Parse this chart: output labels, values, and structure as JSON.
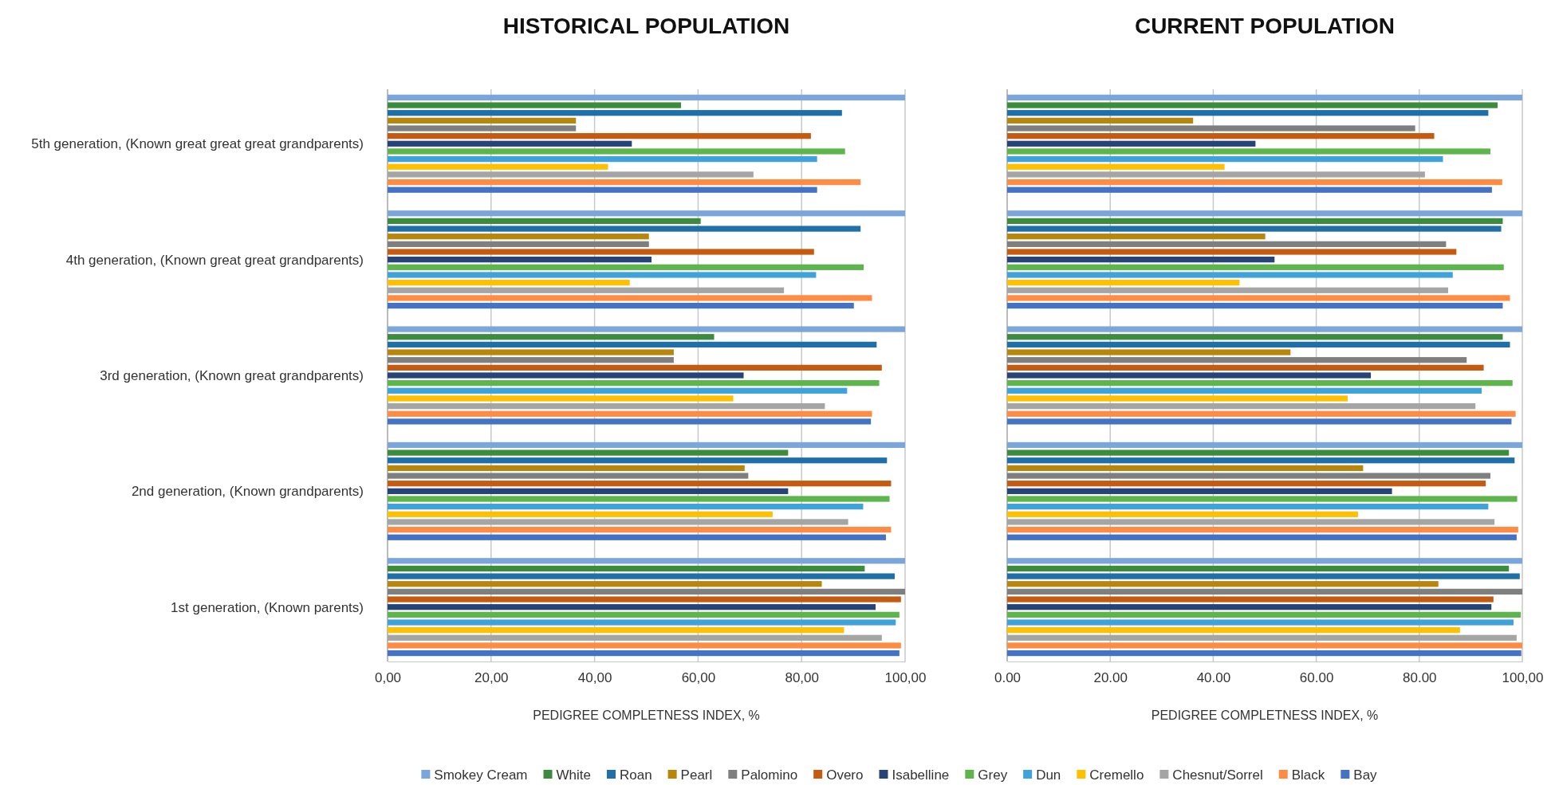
{
  "chart_data": [
    {
      "type": "bar",
      "orientation": "horizontal",
      "title": "HISTORICAL POPULATION",
      "xlabel": "PEDIGREE COMPLETNESS INDEX, %",
      "categories": [
        "5th generation, (Known great great great grandparents)",
        "4th generation, (Known great great grandparents)",
        "3rd generation, (Known great grandparents)",
        "2nd generation, (Known grandparents)",
        "1st generation, (Known parents)"
      ],
      "xlim": [
        0,
        100
      ],
      "xticks": [
        {
          "value": 0,
          "label": "0,00"
        },
        {
          "value": 20,
          "label": "20,00"
        },
        {
          "value": 40,
          "label": "40,00"
        },
        {
          "value": 60,
          "label": "60,00"
        },
        {
          "value": 80,
          "label": "80,00"
        },
        {
          "value": 100,
          "label": "100,00"
        }
      ],
      "grid": "x",
      "legend": "bottom",
      "series": [
        {
          "name": "Smokey Cream",
          "color": "#7aa6dc",
          "values": [
            100,
            100,
            100,
            100,
            100
          ]
        },
        {
          "name": "White",
          "color": "#3d8b3d",
          "values": [
            56.7,
            60.5,
            63.1,
            77.4,
            92.2
          ]
        },
        {
          "name": "Roan",
          "color": "#1f6fa8",
          "values": [
            87.8,
            91.4,
            94.5,
            96.5,
            98.0
          ]
        },
        {
          "name": "Pearl",
          "color": "#b8860b",
          "values": [
            36.4,
            50.5,
            55.3,
            69.0,
            83.9
          ]
        },
        {
          "name": "Palomino",
          "color": "#7f7f7f",
          "values": [
            36.4,
            50.5,
            55.3,
            69.7,
            100
          ]
        },
        {
          "name": "Overo",
          "color": "#c55a11",
          "values": [
            81.8,
            82.4,
            95.5,
            97.3,
            99.2
          ]
        },
        {
          "name": "Isabelline",
          "color": "#264478",
          "values": [
            47.2,
            51.0,
            68.8,
            77.4,
            94.3
          ]
        },
        {
          "name": "Grey",
          "color": "#5db54b",
          "values": [
            88.4,
            92.0,
            95.0,
            97.0,
            98.9
          ]
        },
        {
          "name": "Dun",
          "color": "#3fa2db",
          "values": [
            83.0,
            82.8,
            88.8,
            91.9,
            98.2
          ]
        },
        {
          "name": "Cremello",
          "color": "#ffc000",
          "values": [
            42.6,
            46.8,
            66.8,
            74.4,
            88.2
          ]
        },
        {
          "name": "Chesnut/Sorrel",
          "color": "#a5a5a5",
          "values": [
            70.7,
            76.6,
            84.5,
            89.0,
            95.5
          ]
        },
        {
          "name": "Black",
          "color": "#ff8c42",
          "values": [
            91.4,
            93.6,
            93.6,
            97.3,
            99.2
          ]
        },
        {
          "name": "Bay",
          "color": "#4472c4",
          "values": [
            83.0,
            90.1,
            93.4,
            96.3,
            98.9
          ]
        }
      ]
    },
    {
      "type": "bar",
      "orientation": "horizontal",
      "title": "CURRENT POPULATION",
      "xlabel": "PEDIGREE COMPLETNESS INDEX, %",
      "categories": [
        "5th generation, (Known great great great grandparents)",
        "4th generation, (Known great great grandparents)",
        "3rd generation, (Known great grandparents)",
        "2nd generation, (Known grandparents)",
        "1st generation, (Known parents)"
      ],
      "tick_labels": "x",
      "xlim": [
        0,
        100
      ],
      "xticks": [
        {
          "value": 0,
          "label": "0.00"
        },
        {
          "value": 20,
          "label": "20.00"
        },
        {
          "value": 40,
          "label": "40.00"
        },
        {
          "value": 60,
          "label": "60.00"
        },
        {
          "value": 80,
          "label": "80.00"
        },
        {
          "value": 100,
          "label": "100,00"
        }
      ],
      "grid": "x",
      "legend": "bottom",
      "series": [
        {
          "name": "Smokey Cream",
          "color": "#7aa6dc",
          "values": [
            100,
            100,
            100,
            100,
            100
          ]
        },
        {
          "name": "White",
          "color": "#3d8b3d",
          "values": [
            95.2,
            96.2,
            96.2,
            97.4,
            97.4
          ]
        },
        {
          "name": "Roan",
          "color": "#1f6fa8",
          "values": [
            93.4,
            95.9,
            97.6,
            98.5,
            99.5
          ]
        },
        {
          "name": "Pearl",
          "color": "#b8860b",
          "values": [
            36.1,
            50.1,
            55.0,
            69.1,
            83.7
          ]
        },
        {
          "name": "Palomino",
          "color": "#7f7f7f",
          "values": [
            79.2,
            85.2,
            89.2,
            93.8,
            100
          ]
        },
        {
          "name": "Overo",
          "color": "#c55a11",
          "values": [
            82.9,
            87.2,
            92.5,
            92.9,
            94.4
          ]
        },
        {
          "name": "Isabelline",
          "color": "#264478",
          "values": [
            48.2,
            51.9,
            70.6,
            74.7,
            94.0
          ]
        },
        {
          "name": "Grey",
          "color": "#5db54b",
          "values": [
            93.8,
            96.4,
            98.1,
            99.0,
            99.7
          ]
        },
        {
          "name": "Dun",
          "color": "#3fa2db",
          "values": [
            84.6,
            86.5,
            92.1,
            93.4,
            98.3
          ]
        },
        {
          "name": "Cremello",
          "color": "#ffc000",
          "values": [
            42.2,
            45.1,
            66.1,
            68.1,
            87.9
          ]
        },
        {
          "name": "Chesnut/Sorrel",
          "color": "#a5a5a5",
          "values": [
            81.1,
            85.6,
            90.9,
            94.6,
            98.9
          ]
        },
        {
          "name": "Black",
          "color": "#ff8c42",
          "values": [
            96.1,
            97.6,
            98.7,
            99.2,
            100
          ]
        },
        {
          "name": "Bay",
          "color": "#4472c4",
          "values": [
            94.1,
            96.2,
            97.9,
            98.9,
            99.8
          ]
        }
      ]
    }
  ]
}
